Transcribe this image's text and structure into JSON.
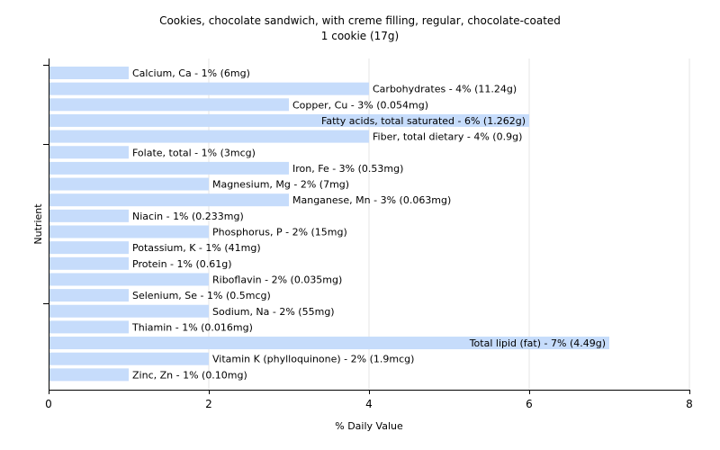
{
  "chart_data": {
    "type": "bar",
    "orientation": "horizontal",
    "title": "Cookies, chocolate sandwich, with creme filling, regular, chocolate-coated",
    "subtitle": "1 cookie (17g)",
    "xlabel": "% Daily Value",
    "ylabel": "Nutrient",
    "xlim": [
      0,
      8
    ],
    "xticks": [
      "0",
      "2",
      "4",
      "6",
      "8"
    ],
    "grid": "vertical",
    "legend": "none",
    "bar_color": "#c6dcfb",
    "categories": [
      "Calcium, Ca",
      "Carbohydrates",
      "Copper, Cu",
      "Fatty acids, total saturated",
      "Fiber, total dietary",
      "Folate, total",
      "Iron, Fe",
      "Magnesium, Mg",
      "Manganese, Mn",
      "Niacin",
      "Phosphorus, P",
      "Potassium, K",
      "Protein",
      "Riboflavin",
      "Selenium, Se",
      "Sodium, Na",
      "Thiamin",
      "Total lipid (fat)",
      "Vitamin K (phylloquinone)",
      "Zinc, Zn"
    ],
    "values": [
      1,
      4,
      3,
      6,
      4,
      1,
      3,
      2,
      3,
      1,
      2,
      1,
      1,
      2,
      1,
      2,
      1,
      7,
      2,
      1
    ],
    "labels": [
      "Calcium, Ca - 1% (6mg)",
      "Carbohydrates - 4% (11.24g)",
      "Copper, Cu - 3% (0.054mg)",
      "Fatty acids, total saturated - 6% (1.262g)",
      "Fiber, total dietary - 4% (0.9g)",
      "Folate, total - 1% (3mcg)",
      "Iron, Fe - 3% (0.53mg)",
      "Magnesium, Mg - 2% (7mg)",
      "Manganese, Mn - 3% (0.063mg)",
      "Niacin - 1% (0.233mg)",
      "Phosphorus, P - 2% (15mg)",
      "Potassium, K - 1% (41mg)",
      "Protein - 1% (0.61g)",
      "Riboflavin - 2% (0.035mg)",
      "Selenium, Se - 1% (0.5mcg)",
      "Sodium, Na - 2% (55mg)",
      "Thiamin - 1% (0.016mg)",
      "Total lipid (fat) - 7% (4.49g)",
      "Vitamin K (phylloquinone) - 2% (1.9mcg)",
      "Zinc, Zn - 1% (0.10mg)"
    ]
  }
}
